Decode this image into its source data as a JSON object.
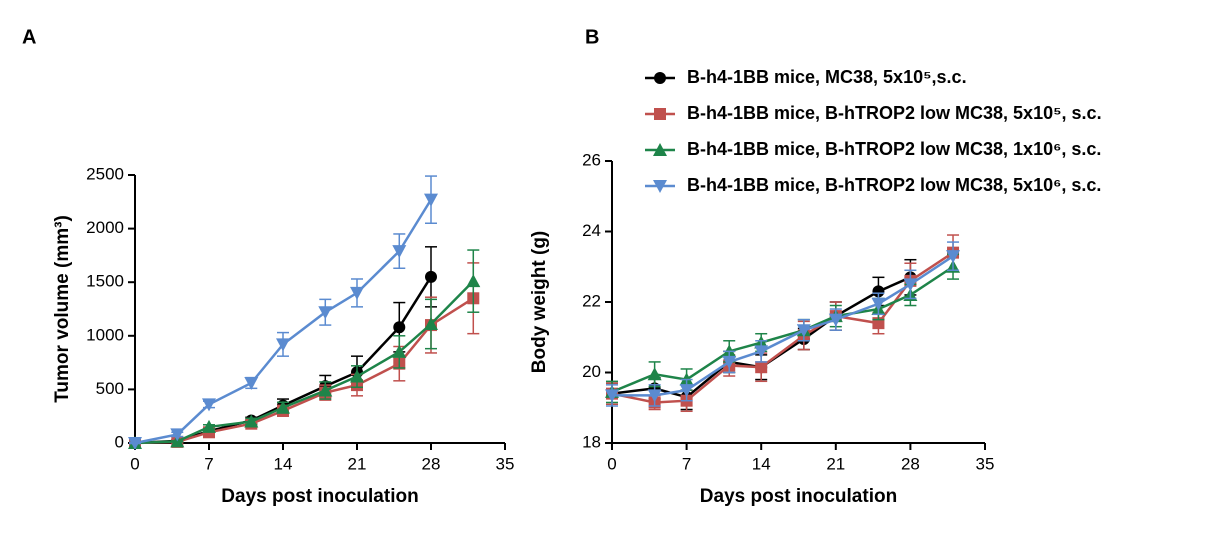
{
  "chart_data": [
    {
      "type": "line",
      "panel_label": "A",
      "xlabel": "Days post inoculation",
      "ylabel": "Tumor volume (mm³)",
      "xlim": [
        0,
        35
      ],
      "xticks": [
        0,
        7,
        14,
        21,
        28,
        35
      ],
      "ylim": [
        0,
        2500
      ],
      "yticks": [
        0,
        500,
        1000,
        1500,
        2000,
        2500
      ],
      "grid": false,
      "series": [
        {
          "color": "#000000",
          "marker": "circle",
          "x": [
            0,
            4,
            7,
            11,
            14,
            18,
            21,
            25,
            28
          ],
          "values": [
            0,
            20,
            110,
            210,
            350,
            530,
            660,
            1080,
            1550
          ],
          "errors": [
            5,
            10,
            20,
            30,
            60,
            100,
            150,
            230,
            280
          ]
        },
        {
          "color": "#c0504d",
          "marker": "square",
          "x": [
            0,
            4,
            7,
            11,
            14,
            18,
            21,
            25,
            28,
            32
          ],
          "values": [
            0,
            10,
            100,
            180,
            300,
            470,
            540,
            740,
            1100,
            1350
          ],
          "errors": [
            5,
            5,
            15,
            30,
            50,
            70,
            100,
            160,
            260,
            330
          ]
        },
        {
          "color": "#1e8449",
          "marker": "triangle-up",
          "x": [
            0,
            4,
            7,
            11,
            14,
            18,
            21,
            25,
            28,
            32
          ],
          "values": [
            0,
            15,
            150,
            200,
            330,
            490,
            620,
            850,
            1110,
            1510
          ],
          "errors": [
            5,
            5,
            20,
            30,
            50,
            80,
            100,
            150,
            230,
            290
          ]
        },
        {
          "color": "#5b8bd0",
          "marker": "triangle-down",
          "x": [
            0,
            4,
            7,
            11,
            14,
            18,
            21,
            25,
            28
          ],
          "values": [
            0,
            80,
            360,
            560,
            920,
            1220,
            1400,
            1790,
            2270
          ],
          "errors": [
            5,
            20,
            30,
            50,
            110,
            120,
            130,
            160,
            220
          ]
        }
      ]
    },
    {
      "type": "line",
      "panel_label": "B",
      "xlabel": "Days post inoculation",
      "ylabel": "Body weight (g)",
      "xlim": [
        0,
        35
      ],
      "xticks": [
        0,
        7,
        14,
        21,
        28,
        35
      ],
      "ylim": [
        18,
        26
      ],
      "yticks": [
        18,
        20,
        22,
        24,
        26
      ],
      "grid": false,
      "legend": "top",
      "series": [
        {
          "name": "B-h4-1BB mice, MC38, 5x10⁵,s.c.",
          "color": "#000000",
          "marker": "circle",
          "x": [
            0,
            4,
            7,
            11,
            14,
            18,
            21,
            25,
            28
          ],
          "values": [
            19.4,
            19.55,
            19.3,
            20.3,
            20.15,
            20.95,
            21.6,
            22.3,
            22.7
          ],
          "errors": [
            0.3,
            0.3,
            0.35,
            0.3,
            0.35,
            0.3,
            0.4,
            0.4,
            0.5
          ]
        },
        {
          "name": "B-h4-1BB mice, B-hTROP2 low MC38, 5x10⁵, s.c.",
          "color": "#c0504d",
          "marker": "square",
          "x": [
            0,
            4,
            7,
            11,
            14,
            18,
            21,
            25,
            28,
            32
          ],
          "values": [
            19.4,
            19.15,
            19.2,
            20.2,
            20.15,
            21.05,
            21.6,
            21.4,
            22.6,
            23.4
          ],
          "errors": [
            0.3,
            0.2,
            0.3,
            0.3,
            0.4,
            0.4,
            0.4,
            0.3,
            0.5,
            0.5
          ]
        },
        {
          "name": "B-h4-1BB mice, B-hTROP2 low MC38, 1x10⁶, s.c.",
          "color": "#1e8449",
          "marker": "triangle-up",
          "x": [
            0,
            4,
            7,
            11,
            14,
            18,
            21,
            25,
            28,
            32
          ],
          "values": [
            19.45,
            19.95,
            19.8,
            20.6,
            20.85,
            21.2,
            21.6,
            21.8,
            22.2,
            23.0
          ],
          "errors": [
            0.3,
            0.35,
            0.3,
            0.3,
            0.25,
            0.3,
            0.3,
            0.3,
            0.3,
            0.35
          ]
        },
        {
          "name": "B-h4-1BB mice, B-hTROP2 low MC38, 5x10⁶, s.c.",
          "color": "#5b8bd0",
          "marker": "triangle-down",
          "x": [
            0,
            4,
            7,
            11,
            14,
            18,
            21,
            25,
            28,
            32
          ],
          "values": [
            19.35,
            19.35,
            19.5,
            20.3,
            20.6,
            21.2,
            21.5,
            21.95,
            22.5,
            23.3
          ],
          "errors": [
            0.3,
            0.3,
            0.3,
            0.3,
            0.3,
            0.3,
            0.3,
            0.3,
            0.4,
            0.4
          ]
        }
      ]
    }
  ]
}
